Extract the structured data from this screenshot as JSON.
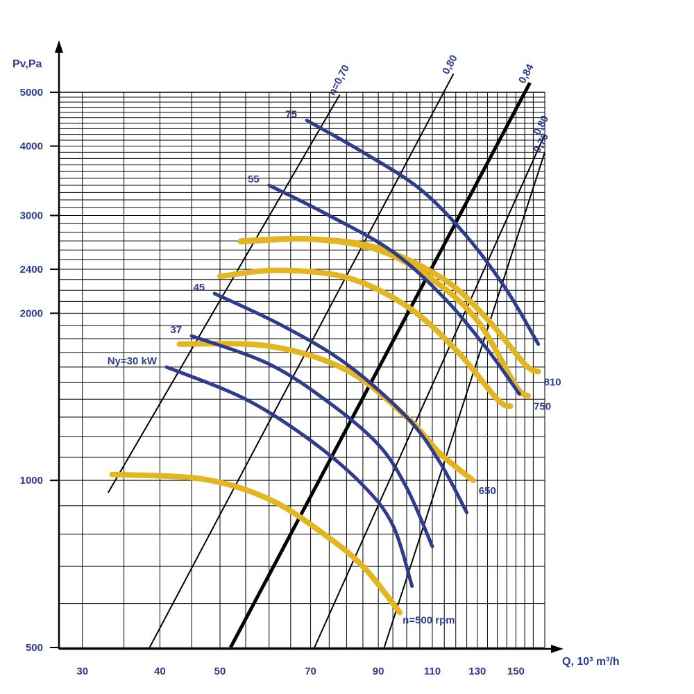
{
  "chart_data": {
    "type": "line",
    "title": "",
    "ylabel": "Pv,Pa",
    "xlabel": "Q, 10³ m³/h",
    "x_scale": "log",
    "y_scale": "log",
    "xlim": [
      27.5,
      167
    ],
    "ylim": [
      500,
      5000
    ],
    "grid": true,
    "colors": {
      "axis": "#000000",
      "grid": "#000000",
      "text": "#2d3c8c",
      "rpm_curve": "#e3b521",
      "power_curve": "#2d3c8c",
      "efficiency_line": "#000000"
    },
    "x_ticks": [
      30,
      40,
      50,
      70,
      90,
      110,
      130,
      150
    ],
    "x_tick_labels": [
      "30",
      "40",
      "50",
      "70",
      "90",
      "110",
      "130",
      "150"
    ],
    "y_ticks": [
      500,
      1000,
      2000,
      2400,
      3000,
      4000,
      5000
    ],
    "y_tick_labels": [
      "500",
      "1000",
      "2000",
      "2400",
      "3000",
      "4000",
      "5000"
    ],
    "rpm_series": [
      {
        "label": "n=500 rpm",
        "points": [
          [
            33.5,
            1025
          ],
          [
            47,
            1005
          ],
          [
            60,
            925
          ],
          [
            73,
            805
          ],
          [
            85,
            700
          ],
          [
            97.5,
            578
          ]
        ]
      },
      {
        "label": "650",
        "points": [
          [
            43,
            1760
          ],
          [
            60,
            1745
          ],
          [
            80,
            1580
          ],
          [
            100,
            1300
          ],
          [
            113,
            1120
          ],
          [
            128,
            1000
          ]
        ]
      },
      {
        "label": "",
        "points": [
          [
            50,
            2330
          ],
          [
            62,
            2390
          ],
          [
            80,
            2320
          ],
          [
            100,
            2060
          ],
          [
            120,
            1720
          ],
          [
            140,
            1400
          ],
          [
            147,
            1360
          ]
        ]
      },
      {
        "label": "750",
        "points": [
          [
            54,
            2700
          ],
          [
            70,
            2720
          ],
          [
            90,
            2600
          ],
          [
            110,
            2300
          ],
          [
            130,
            1940
          ],
          [
            150,
            1480
          ],
          [
            157,
            1420
          ]
        ]
      },
      {
        "label": "810",
        "points": [
          [
            54,
            2690
          ],
          [
            70,
            2720
          ],
          [
            90,
            2620
          ],
          [
            115,
            2300
          ],
          [
            135,
            1950
          ],
          [
            155,
            1620
          ],
          [
            163,
            1570
          ]
        ]
      }
    ],
    "power_series": [
      {
        "label": "Ny=30 kW",
        "points": [
          [
            41,
            1600
          ],
          [
            55,
            1400
          ],
          [
            70,
            1180
          ],
          [
            85,
            980
          ],
          [
            95,
            830
          ],
          [
            102,
            645
          ]
        ]
      },
      {
        "label": "37",
        "points": [
          [
            45,
            1820
          ],
          [
            60,
            1620
          ],
          [
            75,
            1380
          ],
          [
            90,
            1160
          ],
          [
            100,
            970
          ],
          [
            110,
            760
          ]
        ]
      },
      {
        "label": "45",
        "points": [
          [
            49,
            2170
          ],
          [
            63,
            1900
          ],
          [
            80,
            1620
          ],
          [
            100,
            1300
          ],
          [
            113,
            1080
          ],
          [
            125,
            875
          ]
        ]
      },
      {
        "label": "55",
        "points": [
          [
            60,
            3400
          ],
          [
            75,
            3000
          ],
          [
            95,
            2580
          ],
          [
            115,
            2130
          ],
          [
            135,
            1720
          ],
          [
            152,
            1430
          ]
        ]
      },
      {
        "label": "75",
        "points": [
          [
            69,
            4450
          ],
          [
            85,
            3900
          ],
          [
            105,
            3350
          ],
          [
            125,
            2750
          ],
          [
            145,
            2200
          ],
          [
            163,
            1760
          ]
        ]
      }
    ],
    "efficiency_lines": [
      {
        "label": "η=0,70",
        "bold": false,
        "points": [
          [
            33,
            950
          ],
          [
            78,
            4950
          ]
        ]
      },
      {
        "label": "0,80",
        "bold": false,
        "points": [
          [
            38.5,
            500
          ],
          [
            119,
            5400
          ]
        ]
      },
      {
        "label": "0,84",
        "bold": true,
        "points": [
          [
            52,
            500
          ],
          [
            158,
            5200
          ]
        ]
      },
      {
        "label": "0,80",
        "bold": false,
        "points": [
          [
            71,
            500
          ],
          [
            167,
            4200
          ]
        ]
      },
      {
        "label": "0,70",
        "bold": false,
        "points": [
          [
            92,
            500
          ],
          [
            167,
            3900
          ]
        ]
      }
    ]
  }
}
